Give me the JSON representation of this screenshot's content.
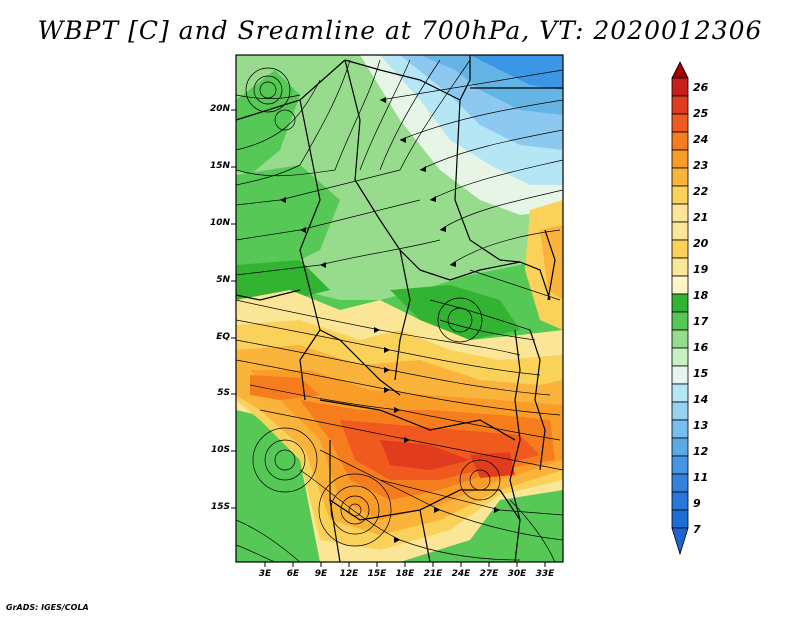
{
  "title": "WBPT [C] and Sreamline at 700hPa, VT: 2020012306",
  "credit": "GrADS: IGES/COLA",
  "map": {
    "lon_range": [
      0,
      35
    ],
    "lat_range": [
      -20,
      24
    ],
    "lat_labels": [
      "20N",
      "15N",
      "10N",
      "5N",
      "EQ",
      "5S",
      "10S",
      "15S"
    ],
    "lon_labels": [
      "3E",
      "6E",
      "9E",
      "12E",
      "15E",
      "18E",
      "21E",
      "24E",
      "27E",
      "30E",
      "33E"
    ],
    "variable": "Wet-bulb potential temperature",
    "streamline_level": "700hPa"
  },
  "colorbar": {
    "labels": [
      "26",
      "25",
      "24",
      "23",
      "22",
      "21",
      "20",
      "19",
      "18",
      "17",
      "16",
      "15",
      "14",
      "13",
      "12",
      "11",
      "9",
      "7"
    ],
    "colors": [
      "#a00000",
      "#c81e1e",
      "#e13c1e",
      "#f05a1e",
      "#f57d1e",
      "#fa9c28",
      "#fab43c",
      "#fad25a",
      "#fae696",
      "#32b432",
      "#55c855",
      "#96dc8c",
      "#e6f5e6",
      "#b4e6f5",
      "#8cc8f0",
      "#64b4e6",
      "#3c96e6",
      "#1e78dc",
      "#1e64d2"
    ]
  }
}
